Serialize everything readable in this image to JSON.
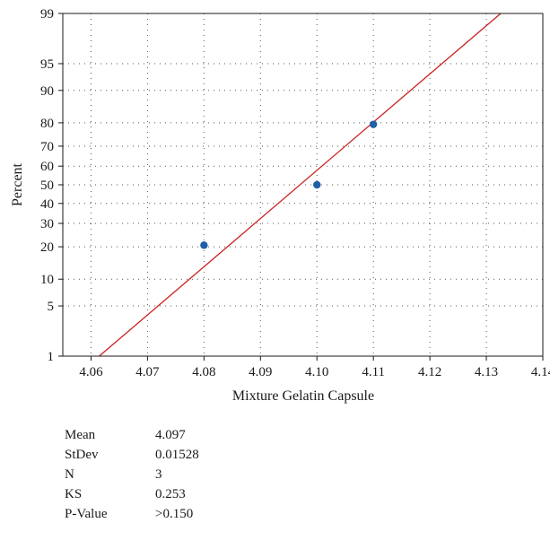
{
  "chart_data": {
    "type": "scatter",
    "title": "",
    "xlabel": "Mixture Gelatin Capsule",
    "ylabel": "Percent",
    "x_ticks": [
      "4.06",
      "4.07",
      "4.08",
      "4.09",
      "4.10",
      "4.11",
      "4.12",
      "4.13",
      "4.14"
    ],
    "x_tick_values": [
      4.06,
      4.07,
      4.08,
      4.09,
      4.1,
      4.11,
      4.12,
      4.13,
      4.14
    ],
    "xlim": [
      4.055,
      4.14
    ],
    "y_ticks": [
      "1",
      "5",
      "10",
      "20",
      "30",
      "40",
      "50",
      "60",
      "70",
      "80",
      "90",
      "95",
      "99"
    ],
    "y_tick_values": [
      1,
      5,
      10,
      20,
      30,
      40,
      50,
      60,
      70,
      80,
      90,
      95,
      99
    ],
    "yscale": "normal-probability",
    "ylim": [
      1,
      99
    ],
    "grid": true,
    "points": {
      "x": [
        4.08,
        4.1,
        4.11
      ],
      "y": [
        20.6,
        50,
        79.4
      ],
      "color": "#1f5fa8"
    },
    "fit_line": {
      "mean": 4.097,
      "stdev": 0.01528,
      "color": "#cc2222"
    }
  },
  "stats": [
    {
      "label": "Mean",
      "value": "4.097"
    },
    {
      "label": "StDev",
      "value": "0.01528"
    },
    {
      "label": "N",
      "value": "3"
    },
    {
      "label": "KS",
      "value": "0.253"
    },
    {
      "label": "P-Value",
      "value": ">0.150"
    }
  ]
}
